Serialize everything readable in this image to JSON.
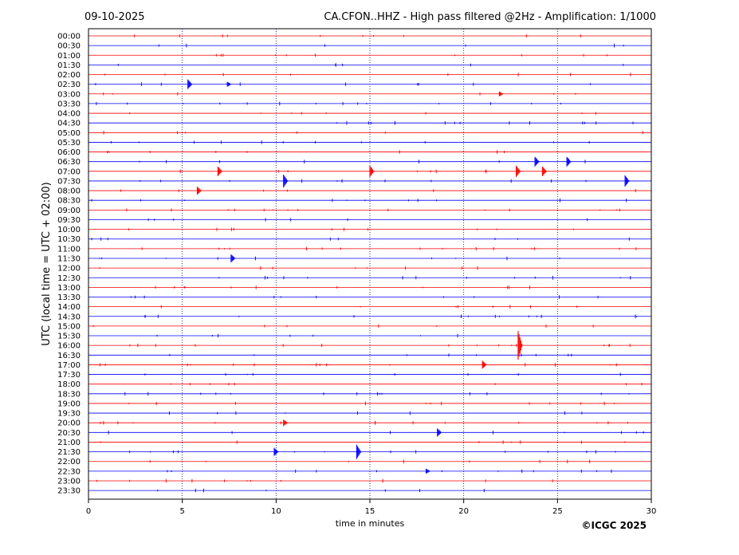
{
  "header": {
    "date": "09-10-2025",
    "station_title": "CA.CFON..HHZ - High pass filtered @2Hz - Amplification: 1/1000"
  },
  "copyright": "©ICGC 2025",
  "colors": {
    "trace_a": "#ff0000",
    "trace_b": "#0000ff",
    "frame": "#000000",
    "grid": "#000080"
  },
  "chart_data": {
    "type": "line",
    "title": "",
    "xlabel": "time in minutes",
    "ylabel": "UTC (local time = UTC + 02:00)",
    "xlim": [
      0,
      30
    ],
    "x_ticks": [
      "0",
      "5",
      "10",
      "15",
      "20",
      "25",
      "30"
    ],
    "grid": "vertical dotted at each x tick",
    "series": [
      {
        "color": "red/blue alternating",
        "rows": [
          "00:00",
          "00:30",
          "01:00",
          "01:30",
          "02:00",
          "02:30",
          "03:00",
          "03:30",
          "04:00",
          "04:30",
          "05:00",
          "05:30",
          "06:00",
          "06:30",
          "07:00",
          "07:30",
          "08:00",
          "08:30",
          "09:00",
          "09:30",
          "10:00",
          "10:30",
          "11:00",
          "11:30",
          "12:00",
          "12:30",
          "13:00",
          "13:30",
          "14:00",
          "14:30",
          "15:00",
          "15:30",
          "16:00",
          "16:30",
          "17:00",
          "17:30",
          "18:00",
          "18:30",
          "19:00",
          "19:30",
          "20:00",
          "20:30",
          "21:00",
          "21:30",
          "22:00",
          "22:30",
          "23:00",
          "23:30"
        ]
      }
    ],
    "events": [
      {
        "row": "02:30",
        "minute": 5.3,
        "amplitude": 6
      },
      {
        "row": "02:30",
        "minute": 7.4,
        "amplitude": 3
      },
      {
        "row": "03:00",
        "minute": 21.9,
        "amplitude": 3
      },
      {
        "row": "06:30",
        "minute": 23.8,
        "amplitude": 6
      },
      {
        "row": "06:30",
        "minute": 25.5,
        "amplitude": 6
      },
      {
        "row": "07:00",
        "minute": 6.9,
        "amplitude": 6
      },
      {
        "row": "07:00",
        "minute": 15.0,
        "amplitude": 7
      },
      {
        "row": "07:00",
        "minute": 22.8,
        "amplitude": 7
      },
      {
        "row": "07:00",
        "minute": 24.2,
        "amplitude": 6
      },
      {
        "row": "07:30",
        "minute": 10.4,
        "amplitude": 8
      },
      {
        "row": "07:30",
        "minute": 28.6,
        "amplitude": 7
      },
      {
        "row": "08:00",
        "minute": 5.8,
        "amplitude": 5
      },
      {
        "row": "11:30",
        "minute": 7.6,
        "amplitude": 5
      },
      {
        "row": "16:00",
        "minute": 22.9,
        "amplitude": 18
      },
      {
        "row": "17:00",
        "minute": 21.0,
        "amplitude": 5
      },
      {
        "row": "20:00",
        "minute": 10.4,
        "amplitude": 4
      },
      {
        "row": "20:30",
        "minute": 18.6,
        "amplitude": 5
      },
      {
        "row": "21:30",
        "minute": 9.9,
        "amplitude": 5
      },
      {
        "row": "21:30",
        "minute": 14.3,
        "amplitude": 9
      },
      {
        "row": "22:30",
        "minute": 18.0,
        "amplitude": 3
      }
    ]
  }
}
